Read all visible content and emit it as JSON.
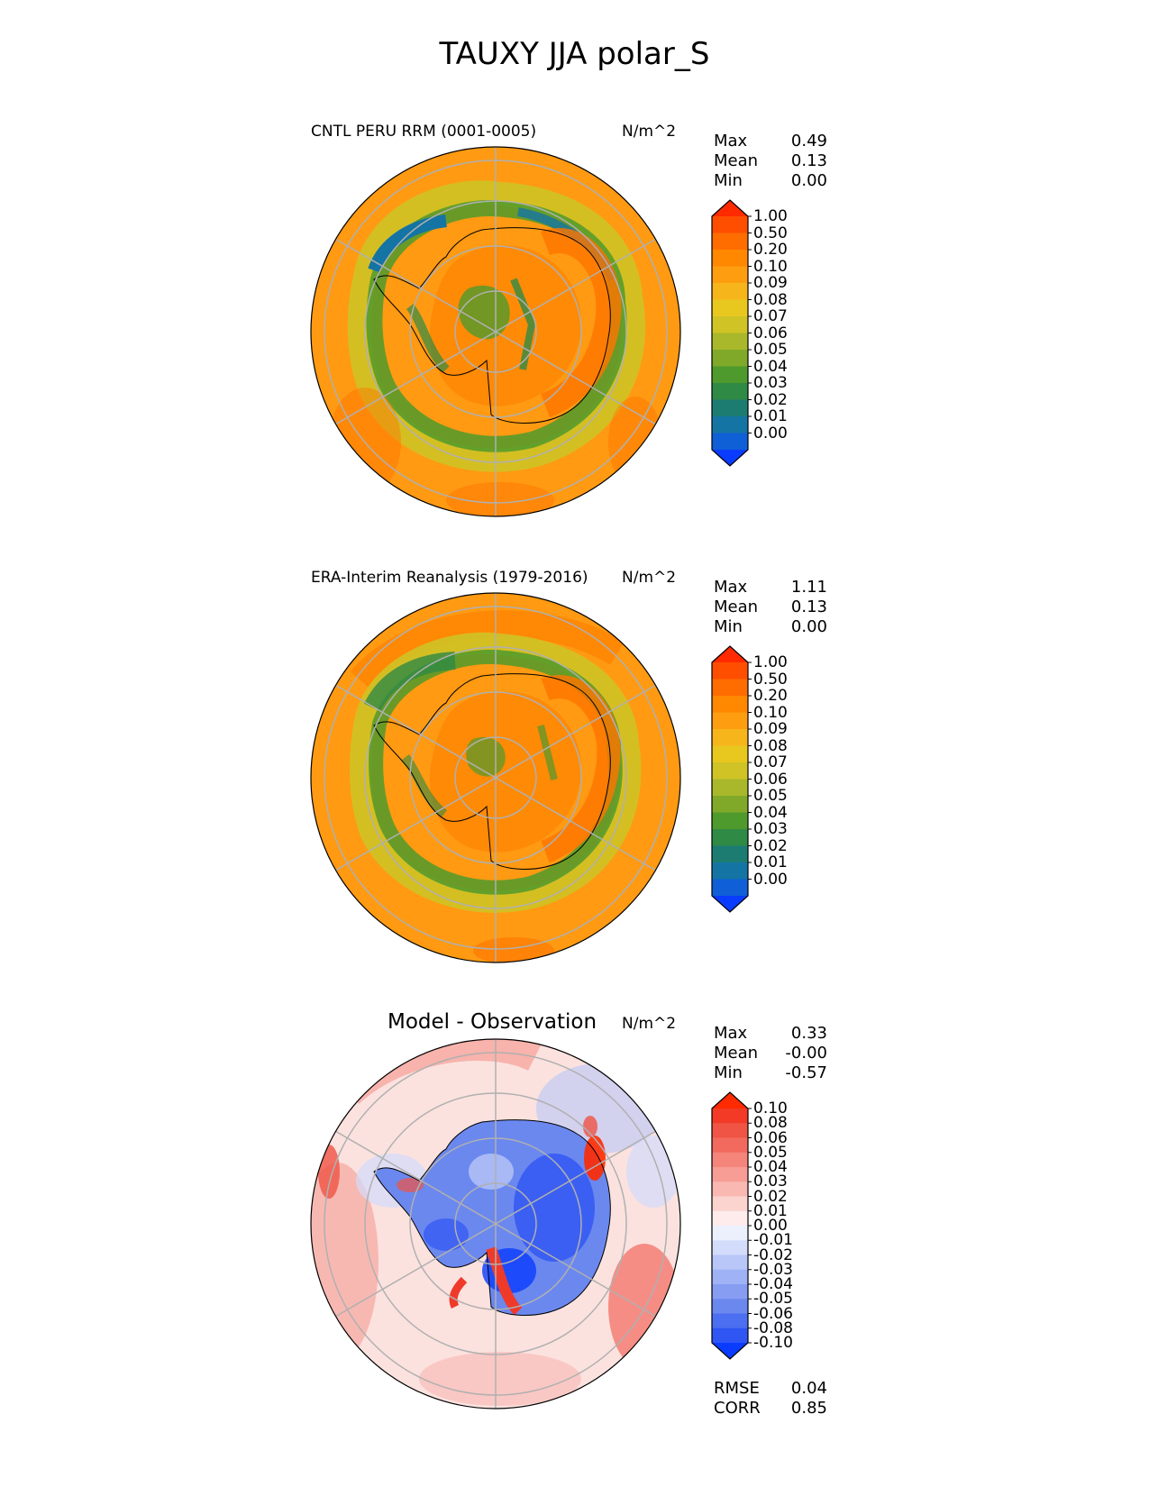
{
  "title": "TAUXY JJA polar_S",
  "panels": [
    {
      "title": "CNTL PERU RRM (0001-0005)",
      "units": "N/m^2",
      "stats": [
        {
          "label": "Max",
          "value": "0.49"
        },
        {
          "label": "Mean",
          "value": "0.13"
        },
        {
          "label": "Min",
          "value": "0.00"
        }
      ],
      "colorbar": {
        "ticks": [
          "1.00",
          "0.50",
          "0.20",
          "0.10",
          "0.09",
          "0.08",
          "0.07",
          "0.06",
          "0.05",
          "0.04",
          "0.03",
          "0.02",
          "0.01",
          "0.00"
        ],
        "colors": [
          "#ff2a00",
          "#ff4e00",
          "#ff6c00",
          "#ff8800",
          "#fe9d10",
          "#f7b51c",
          "#e8c81f",
          "#cfc326",
          "#a9b82a",
          "#80a92a",
          "#4f9a2c",
          "#2f8a45",
          "#1c7c72",
          "#1474a4",
          "#0f5fd6",
          "#0a3cff"
        ]
      }
    },
    {
      "title": "ERA-Interim Reanalysis (1979-2016)",
      "units": "N/m^2",
      "stats": [
        {
          "label": "Max",
          "value": "1.11"
        },
        {
          "label": "Mean",
          "value": "0.13"
        },
        {
          "label": "Min",
          "value": "0.00"
        }
      ],
      "colorbar": {
        "ticks": [
          "1.00",
          "0.50",
          "0.20",
          "0.10",
          "0.09",
          "0.08",
          "0.07",
          "0.06",
          "0.05",
          "0.04",
          "0.03",
          "0.02",
          "0.01",
          "0.00"
        ],
        "colors": [
          "#ff2a00",
          "#ff4e00",
          "#ff6c00",
          "#ff8800",
          "#fe9d10",
          "#f7b51c",
          "#e8c81f",
          "#cfc326",
          "#a9b82a",
          "#80a92a",
          "#4f9a2c",
          "#2f8a45",
          "#1c7c72",
          "#1474a4",
          "#0f5fd6",
          "#0a3cff"
        ]
      }
    },
    {
      "title": "Model - Observation",
      "units": "N/m^2",
      "stats": [
        {
          "label": "Max",
          "value": "0.33"
        },
        {
          "label": "Mean",
          "value": "-0.00"
        },
        {
          "label": "Min",
          "value": "-0.57"
        }
      ],
      "extra_stats": [
        {
          "label": "RMSE",
          "value": "0.04"
        },
        {
          "label": "CORR",
          "value": "0.85"
        }
      ],
      "colorbar": {
        "ticks": [
          "0.10",
          "0.08",
          "0.06",
          "0.05",
          "0.04",
          "0.03",
          "0.02",
          "0.01",
          "0.00",
          "-0.01",
          "-0.02",
          "-0.03",
          "-0.04",
          "-0.05",
          "-0.06",
          "-0.08",
          "-0.10"
        ],
        "colors": [
          "#ff2a00",
          "#f23a26",
          "#ef5444",
          "#f26a5e",
          "#f5847a",
          "#f79d95",
          "#f9b8b2",
          "#fbd3cf",
          "#fdeceb",
          "#ecf0fd",
          "#d3dcfb",
          "#b8c6f8",
          "#9fb2f5",
          "#869df2",
          "#6b88ef",
          "#4c6ef0",
          "#2f55f3",
          "#0a3cff"
        ]
      }
    }
  ],
  "chart_data": [
    {
      "type": "heatmap",
      "title": "CNTL PERU RRM (0001-0005)",
      "projection": "south polar stereographic",
      "units": "N/m^2",
      "levels": [
        0.0,
        0.01,
        0.02,
        0.03,
        0.04,
        0.05,
        0.06,
        0.07,
        0.08,
        0.09,
        0.1,
        0.2,
        0.5,
        1.0
      ],
      "max": 0.49,
      "mean": 0.13,
      "min": 0.0
    },
    {
      "type": "heatmap",
      "title": "ERA-Interim Reanalysis (1979-2016)",
      "projection": "south polar stereographic",
      "units": "N/m^2",
      "levels": [
        0.0,
        0.01,
        0.02,
        0.03,
        0.04,
        0.05,
        0.06,
        0.07,
        0.08,
        0.09,
        0.1,
        0.2,
        0.5,
        1.0
      ],
      "max": 1.11,
      "mean": 0.13,
      "min": 0.0
    },
    {
      "type": "heatmap",
      "title": "Model - Observation",
      "projection": "south polar stereographic",
      "units": "N/m^2",
      "levels": [
        -0.1,
        -0.08,
        -0.06,
        -0.05,
        -0.04,
        -0.03,
        -0.02,
        -0.01,
        0.0,
        0.01,
        0.02,
        0.03,
        0.04,
        0.05,
        0.06,
        0.08,
        0.1
      ],
      "max": 0.33,
      "mean": -0.0,
      "min": -0.57,
      "rmse": 0.04,
      "corr": 0.85
    }
  ]
}
